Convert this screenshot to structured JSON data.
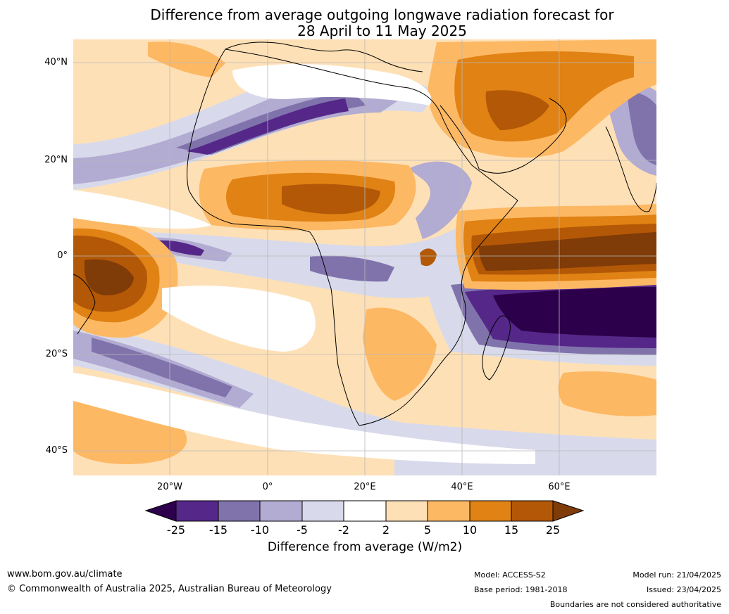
{
  "title": {
    "line1": "Difference from average outgoing longwave radiation forecast for",
    "line2": "28 April to 11 May 2025"
  },
  "map": {
    "lat_labels": [
      "40°N",
      "20°N",
      "0°",
      "20°S",
      "40°S"
    ],
    "lon_labels": [
      "20°W",
      "0°",
      "20°E",
      "40°E",
      "60°E"
    ]
  },
  "colorbar": {
    "label": "Difference from average (W/m2)",
    "ticks": [
      "-25",
      "-15",
      "-10",
      "-5",
      "-2",
      "2",
      "5",
      "10",
      "15",
      "25"
    ],
    "colors": {
      "below_min": "#2d004b",
      "bins": [
        "#542788",
        "#8073ac",
        "#b2abd2",
        "#d8daeb",
        "#ffffff",
        "#fee0b6",
        "#fdb863",
        "#e08214",
        "#b35806"
      ],
      "above_max": "#7f3b08"
    }
  },
  "footer": {
    "website": "www.bom.gov.au/climate",
    "copyright": "© Commonwealth of Australia 2025, Australian Bureau of Meteorology",
    "model": "Model: ACCESS-S2",
    "base_period": "Base period: 1981-2018",
    "model_run": "Model run: 21/04/2025",
    "issued": "Issued: 23/04/2025",
    "disclaimer": "Boundaries are not considered authoritative"
  }
}
